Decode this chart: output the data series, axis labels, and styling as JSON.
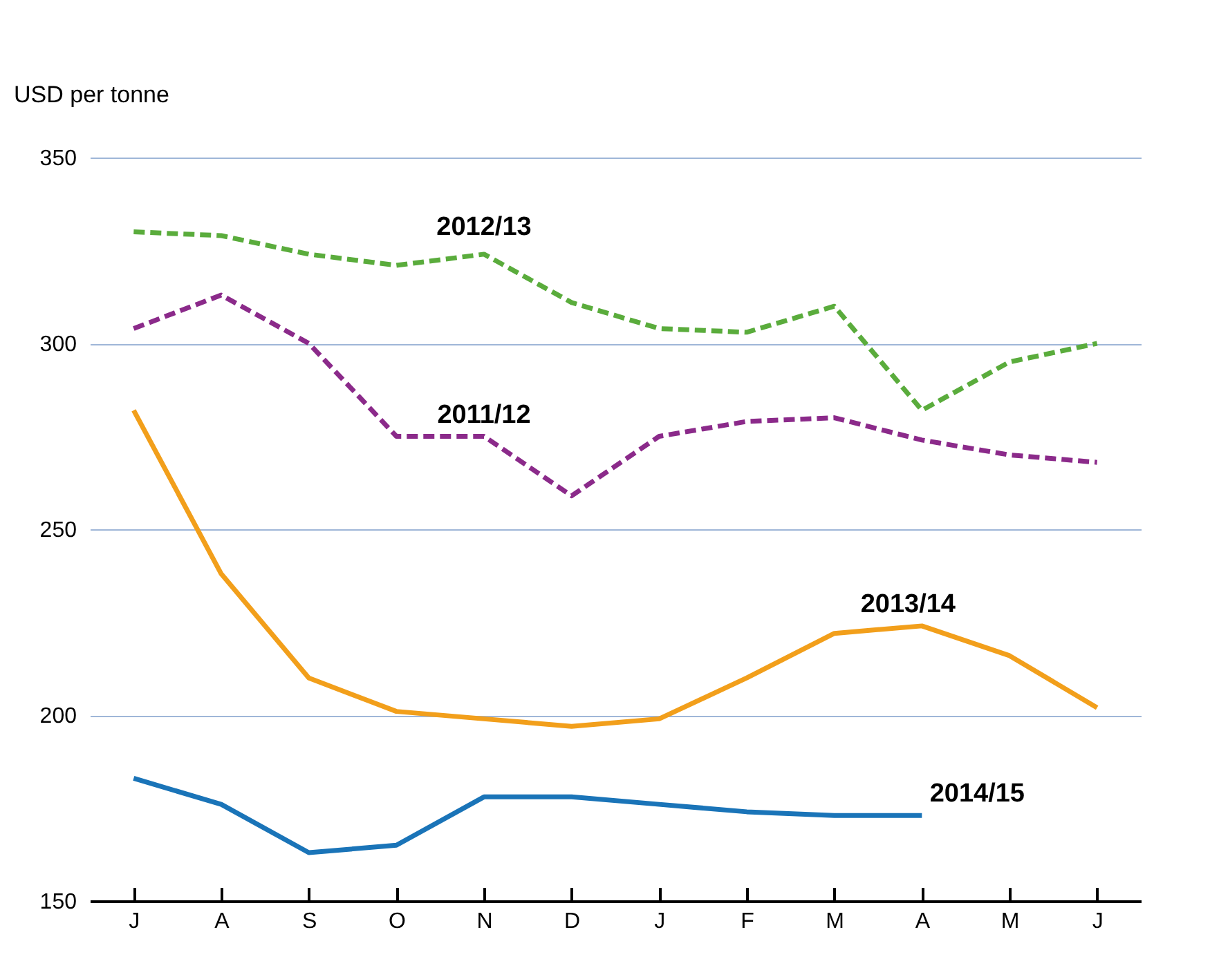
{
  "chart_data": {
    "type": "line",
    "ylabel": "USD per tonne",
    "categories": [
      "J",
      "A",
      "S",
      "O",
      "N",
      "D",
      "J",
      "F",
      "M",
      "A",
      "M",
      "J"
    ],
    "series": [
      {
        "name": "2012/13",
        "color": "#5aac3c",
        "line_style": "dashed",
        "values": [
          330,
          329,
          324,
          321,
          324,
          311,
          304,
          303,
          310,
          282,
          295,
          300
        ]
      },
      {
        "name": "2011/12",
        "color": "#8b2a8a",
        "line_style": "dashed",
        "values": [
          304,
          313,
          300,
          275,
          275,
          259,
          275,
          279,
          280,
          274,
          270,
          268
        ]
      },
      {
        "name": "2013/14",
        "color": "#f29f1b",
        "line_style": "solid",
        "values": [
          282,
          238,
          210,
          201,
          199,
          197,
          199,
          210,
          222,
          224,
          216,
          202
        ]
      },
      {
        "name": "2014/15",
        "color": "#1a74b8",
        "line_style": "solid",
        "values": [
          183,
          176,
          163,
          165,
          178,
          178,
          176,
          174,
          173,
          173,
          null,
          null
        ]
      }
    ],
    "ylim": [
      150,
      350
    ],
    "yticks": [
      150,
      200,
      250,
      300,
      350
    ],
    "grid": "y",
    "marker": "none"
  }
}
